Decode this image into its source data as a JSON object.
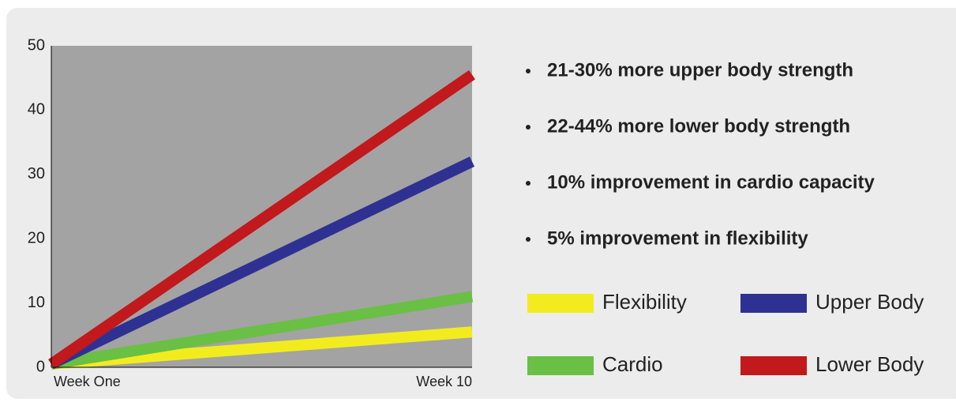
{
  "chart_data": {
    "type": "line",
    "categories": [
      "Week One",
      "Week 10"
    ],
    "series": [
      {
        "name": "Flexibility",
        "color": "#f2ec1f",
        "values": [
          0.5,
          5.5
        ]
      },
      {
        "name": "Cardio",
        "color": "#6abf45",
        "values": [
          0.5,
          11
        ]
      },
      {
        "name": "Upper Body",
        "color": "#2e3192",
        "values": [
          0.5,
          32
        ]
      },
      {
        "name": "Lower Body",
        "color": "#c1191c",
        "values": [
          0.5,
          45.5
        ]
      }
    ],
    "ylim": [
      0,
      50
    ],
    "yticks": [
      0,
      10,
      20,
      30,
      40,
      50
    ],
    "grid": false,
    "plot_background": "#a3a3a3",
    "annotations": [
      "21-30% more upper body strength",
      "22-44% more lower body strength",
      "10% improvement in cardio capacity",
      "5% improvement in flexibility"
    ]
  }
}
